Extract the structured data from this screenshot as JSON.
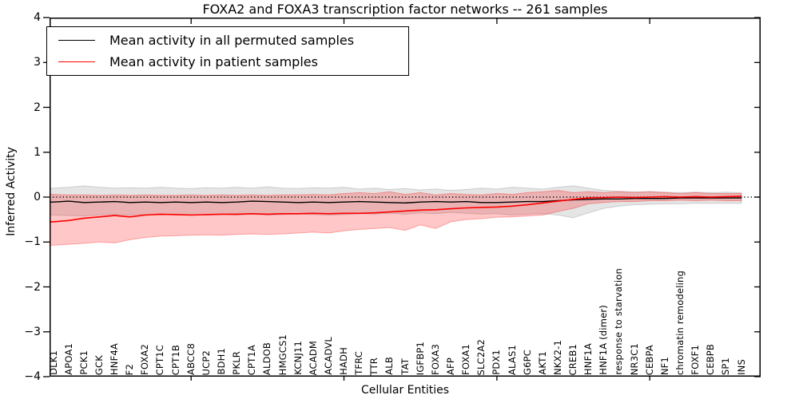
{
  "figure": {
    "title": "FOXA2 and FOXA3 transcription factor networks -- 261 samples",
    "xlabel": "Cellular Entities",
    "ylabel": "Inferred Activity"
  },
  "legend": {
    "items": [
      {
        "label": "Mean activity in all permuted samples",
        "color": "#000000"
      },
      {
        "label": "Mean activity in patient samples",
        "color": "#ff0000"
      }
    ]
  },
  "chart_data": {
    "type": "line",
    "title": "FOXA2 and FOXA3 transcription factor networks -- 261 samples",
    "xlabel": "Cellular Entities",
    "ylabel": "Inferred Activity",
    "ylim": [
      -4,
      4
    ],
    "yticks": [
      4,
      3,
      2,
      1,
      0,
      -1,
      -2,
      -3,
      -4
    ],
    "xtick_index": [
      9,
      19,
      29,
      39
    ],
    "grid": false,
    "legend_position": "upper left",
    "zero_reference_line": {
      "y": 0,
      "style": "dotted",
      "color": "#000000"
    },
    "categories": [
      "DLK1",
      "APOA1",
      "PCK1",
      "GCK",
      "HNF4A",
      "F2",
      "FOXA2",
      "CPT1C",
      "CPT1B",
      "ABCC8",
      "UCP2",
      "BDH1",
      "PKLR",
      "CPT1A",
      "ALDOB",
      "HMGCS1",
      "KCNJ11",
      "ACADM",
      "ACADVL",
      "HADH",
      "TFRC",
      "TTR",
      "ALB",
      "TAT",
      "IGFBP1",
      "FOXA3",
      "AFP",
      "FOXA1",
      "SLC2A2",
      "PDX1",
      "ALAS1",
      "G6PC",
      "AKT1",
      "NKX2-1",
      "CREB1",
      "HNF1A",
      "HNF1A (dimer)",
      "response to starvation",
      "NR3C1",
      "CEBPA",
      "NF1",
      "chromatin remodeling",
      "FOXF1",
      "CEBPB",
      "SP1",
      "INS"
    ],
    "series": [
      {
        "name": "Mean activity in all permuted samples",
        "color": "#000000",
        "line_width": 1.4,
        "band_fill": "rgba(0,0,0,0.10)",
        "band_edge": "rgba(0,0,0,0.15)",
        "values": [
          -0.11,
          -0.09,
          -0.12,
          -0.11,
          -0.1,
          -0.12,
          -0.11,
          -0.12,
          -0.11,
          -0.12,
          -0.11,
          -0.12,
          -0.11,
          -0.09,
          -0.1,
          -0.11,
          -0.12,
          -0.11,
          -0.12,
          -0.11,
          -0.1,
          -0.11,
          -0.12,
          -0.13,
          -0.11,
          -0.1,
          -0.11,
          -0.1,
          -0.12,
          -0.12,
          -0.11,
          -0.1,
          -0.1,
          -0.08,
          -0.06,
          -0.05,
          -0.04,
          -0.04,
          -0.03,
          -0.03,
          -0.03,
          -0.02,
          -0.02,
          -0.02,
          -0.02,
          -0.02
        ],
        "band_upper": [
          0.2,
          0.22,
          0.25,
          0.22,
          0.2,
          0.21,
          0.2,
          0.22,
          0.2,
          0.19,
          0.21,
          0.2,
          0.22,
          0.2,
          0.23,
          0.2,
          0.19,
          0.21,
          0.2,
          0.22,
          0.18,
          0.2,
          0.17,
          0.19,
          0.16,
          0.18,
          0.15,
          0.17,
          0.2,
          0.18,
          0.22,
          0.2,
          0.18,
          0.22,
          0.25,
          0.2,
          0.15,
          0.13,
          0.12,
          0.12,
          0.11,
          0.1,
          0.11,
          0.1,
          0.11,
          0.1
        ],
        "band_lower": [
          -0.4,
          -0.41,
          -0.42,
          -0.4,
          -0.39,
          -0.4,
          -0.39,
          -0.4,
          -0.38,
          -0.39,
          -0.4,
          -0.39,
          -0.4,
          -0.38,
          -0.4,
          -0.39,
          -0.38,
          -0.39,
          -0.4,
          -0.39,
          -0.37,
          -0.38,
          -0.36,
          -0.38,
          -0.35,
          -0.37,
          -0.34,
          -0.36,
          -0.38,
          -0.37,
          -0.4,
          -0.38,
          -0.37,
          -0.4,
          -0.46,
          -0.35,
          -0.25,
          -0.2,
          -0.17,
          -0.16,
          -0.15,
          -0.15,
          -0.14,
          -0.14,
          -0.14,
          -0.14
        ]
      },
      {
        "name": "Mean activity in patient samples",
        "color": "#ff0000",
        "line_width": 1.6,
        "band_fill": "rgba(255,0,0,0.22)",
        "band_edge": "rgba(255,0,0,0.30)",
        "values": [
          -0.55,
          -0.52,
          -0.47,
          -0.44,
          -0.41,
          -0.44,
          -0.4,
          -0.38,
          -0.39,
          -0.4,
          -0.39,
          -0.38,
          -0.38,
          -0.37,
          -0.38,
          -0.37,
          -0.37,
          -0.36,
          -0.37,
          -0.36,
          -0.36,
          -0.35,
          -0.33,
          -0.31,
          -0.29,
          -0.28,
          -0.26,
          -0.24,
          -0.23,
          -0.22,
          -0.2,
          -0.17,
          -0.13,
          -0.09,
          -0.05,
          -0.02,
          -0.01,
          0.0,
          -0.01,
          0.0,
          0.01,
          0.0,
          0.01,
          0.0,
          0.01,
          0.02
        ],
        "band_upper": [
          0.06,
          0.05,
          0.05,
          0.04,
          0.05,
          0.04,
          0.05,
          0.04,
          0.04,
          0.05,
          0.04,
          0.05,
          0.04,
          0.05,
          0.04,
          0.05,
          0.05,
          0.06,
          0.05,
          0.08,
          0.1,
          0.08,
          0.12,
          0.06,
          0.1,
          0.05,
          0.08,
          0.06,
          0.05,
          0.08,
          0.06,
          0.1,
          0.12,
          0.15,
          0.1,
          0.12,
          0.1,
          0.12,
          0.1,
          0.12,
          0.1,
          0.08,
          0.1,
          0.08,
          0.08,
          0.08
        ],
        "band_lower": [
          -1.07,
          -1.05,
          -1.03,
          -1.0,
          -1.02,
          -0.95,
          -0.9,
          -0.87,
          -0.86,
          -0.85,
          -0.84,
          -0.85,
          -0.83,
          -0.82,
          -0.83,
          -0.82,
          -0.8,
          -0.78,
          -0.8,
          -0.75,
          -0.72,
          -0.7,
          -0.68,
          -0.74,
          -0.62,
          -0.7,
          -0.55,
          -0.5,
          -0.48,
          -0.45,
          -0.44,
          -0.42,
          -0.4,
          -0.32,
          -0.25,
          -0.15,
          -0.12,
          -0.1,
          -0.1,
          -0.08,
          -0.08,
          -0.07,
          -0.08,
          -0.07,
          -0.08,
          -0.08
        ]
      }
    ]
  }
}
